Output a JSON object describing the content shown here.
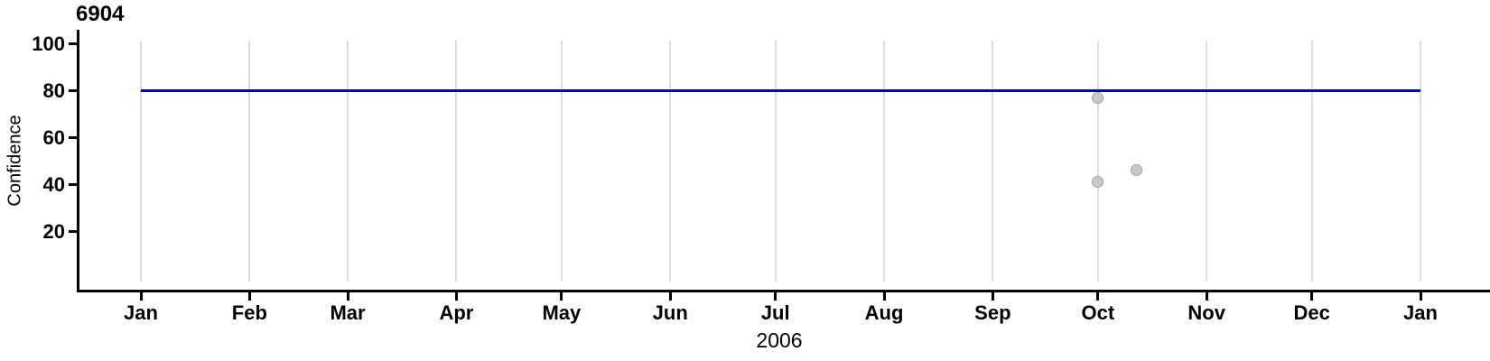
{
  "chart_data": {
    "type": "scatter",
    "title": "6904",
    "xlabel": "2006",
    "ylabel": "Confidence",
    "x_axis": {
      "kind": "time-days-of-year",
      "range_days": [
        0,
        365
      ],
      "tick_labels": [
        "Jan",
        "Feb",
        "Mar",
        "Apr",
        "May",
        "Jun",
        "Jul",
        "Aug",
        "Sep",
        "Oct",
        "Nov",
        "Dec",
        "Jan"
      ],
      "tick_day_offsets": [
        0,
        31,
        59,
        90,
        120,
        151,
        181,
        212,
        243,
        273,
        304,
        334,
        365
      ]
    },
    "y_axis": {
      "ticks": [
        20,
        40,
        60,
        80,
        100
      ],
      "ylim": [
        0,
        107
      ]
    },
    "grid": "vertical-lines-at-month-starts",
    "legend": "none",
    "ref_line": {
      "y": 80,
      "x_start_day": 0,
      "x_end_day": 365
    },
    "points": [
      {
        "x_day": 273,
        "x_label": "Oct 1",
        "y": 77
      },
      {
        "x_day": 273,
        "x_label": "Oct 1",
        "y": 41
      },
      {
        "x_day": 284,
        "x_label": "Oct 12",
        "y": 46
      }
    ],
    "colors": {
      "ref_line": "#0000CC",
      "point_fill": "#C9C9C9",
      "point_border": "#A1A1A1",
      "grid": "#DCDCDC",
      "axis": "#000000",
      "text": "#000000"
    }
  }
}
